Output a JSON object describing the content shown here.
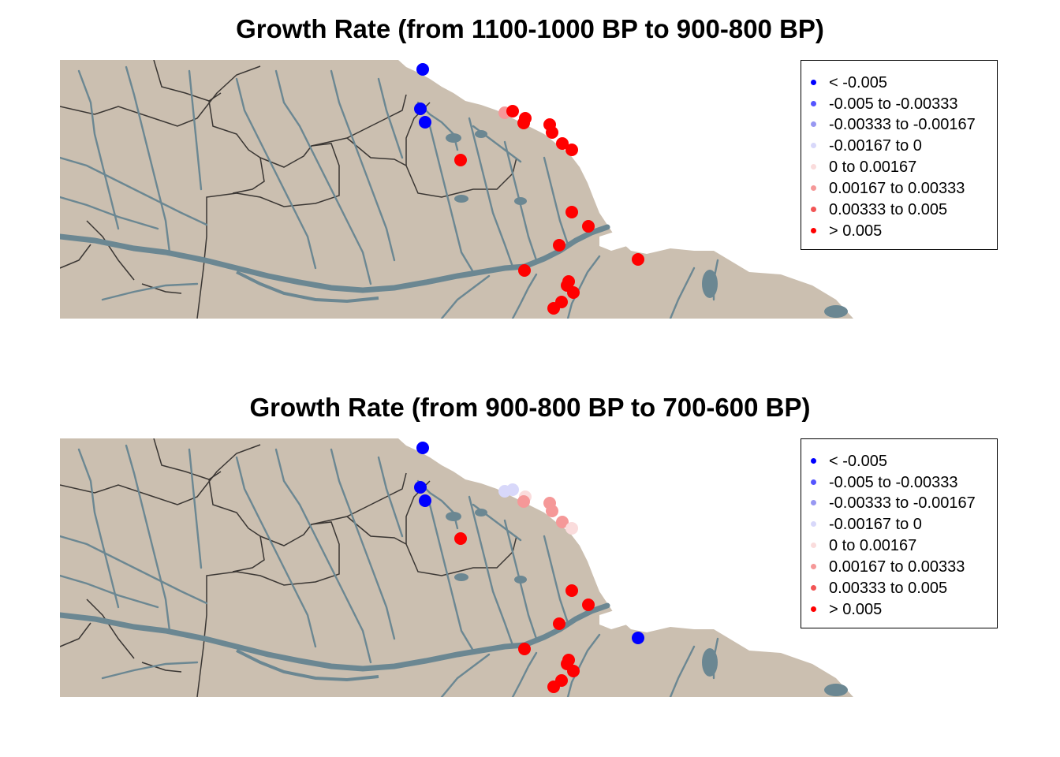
{
  "colors": {
    "land": "#cbbfb0",
    "water": "#6b8792",
    "border": "#3a3633"
  },
  "legend": {
    "items": [
      {
        "label": "< -0.005",
        "color": "#0000ff"
      },
      {
        "label": "-0.005 to -0.00333",
        "color": "#5555ff"
      },
      {
        "label": "-0.00333 to -0.00167",
        "color": "#9898f2"
      },
      {
        "label": "-0.00167 to 0",
        "color": "#d8d8fa"
      },
      {
        "label": "0 to 0.00167",
        "color": "#fadcdc"
      },
      {
        "label": "0.00167 to 0.00333",
        "color": "#f59898"
      },
      {
        "label": "0.00333 to 0.005",
        "color": "#f25555"
      },
      {
        "label": "> 0.005",
        "color": "#ff0000"
      }
    ]
  },
  "maps": [
    {
      "title": "Growth Rate (from 1100-1000 BP to 900-800 BP)",
      "sites": [
        {
          "id": "s1",
          "class": 0
        },
        {
          "id": "s2",
          "class": 0
        },
        {
          "id": "s3",
          "class": 0
        },
        {
          "id": "s4",
          "class": 7
        },
        {
          "id": "s5",
          "class": 5
        },
        {
          "id": "s6",
          "class": 7
        },
        {
          "id": "s7",
          "class": 7
        },
        {
          "id": "s8",
          "class": 7
        },
        {
          "id": "s9",
          "class": 7
        },
        {
          "id": "s10",
          "class": 7
        },
        {
          "id": "s11",
          "class": 7
        },
        {
          "id": "s12",
          "class": 7
        },
        {
          "id": "s13",
          "class": 7
        },
        {
          "id": "s14",
          "class": 7
        },
        {
          "id": "s15",
          "class": 7
        },
        {
          "id": "s16",
          "class": 7
        },
        {
          "id": "s17",
          "class": 7
        },
        {
          "id": "s18",
          "class": 7
        },
        {
          "id": "s19",
          "class": 7
        },
        {
          "id": "s20",
          "class": 7
        },
        {
          "id": "s21",
          "class": 7
        },
        {
          "id": "s22",
          "class": 7
        }
      ]
    },
    {
      "title": "Growth Rate (from 900-800 BP to 700-600 BP)",
      "sites": [
        {
          "id": "s1",
          "class": 0
        },
        {
          "id": "s2",
          "class": 0
        },
        {
          "id": "s3",
          "class": 0
        },
        {
          "id": "s4",
          "class": 7
        },
        {
          "id": "s5",
          "class": 3
        },
        {
          "id": "s6",
          "class": 3
        },
        {
          "id": "s7",
          "class": 4
        },
        {
          "id": "s8",
          "class": 5
        },
        {
          "id": "s9",
          "class": 5
        },
        {
          "id": "s10",
          "class": 5
        },
        {
          "id": "s11",
          "class": 5
        },
        {
          "id": "s12",
          "class": 4
        },
        {
          "id": "s13",
          "class": 7
        },
        {
          "id": "s14",
          "class": 7
        },
        {
          "id": "s15",
          "class": 7
        },
        {
          "id": "s16",
          "class": 0
        },
        {
          "id": "s17",
          "class": 7
        },
        {
          "id": "s18",
          "class": 7
        },
        {
          "id": "s19",
          "class": 7
        },
        {
          "id": "s20",
          "class": 7
        },
        {
          "id": "s21",
          "class": 7
        },
        {
          "id": "s22",
          "class": 7
        }
      ]
    }
  ]
}
